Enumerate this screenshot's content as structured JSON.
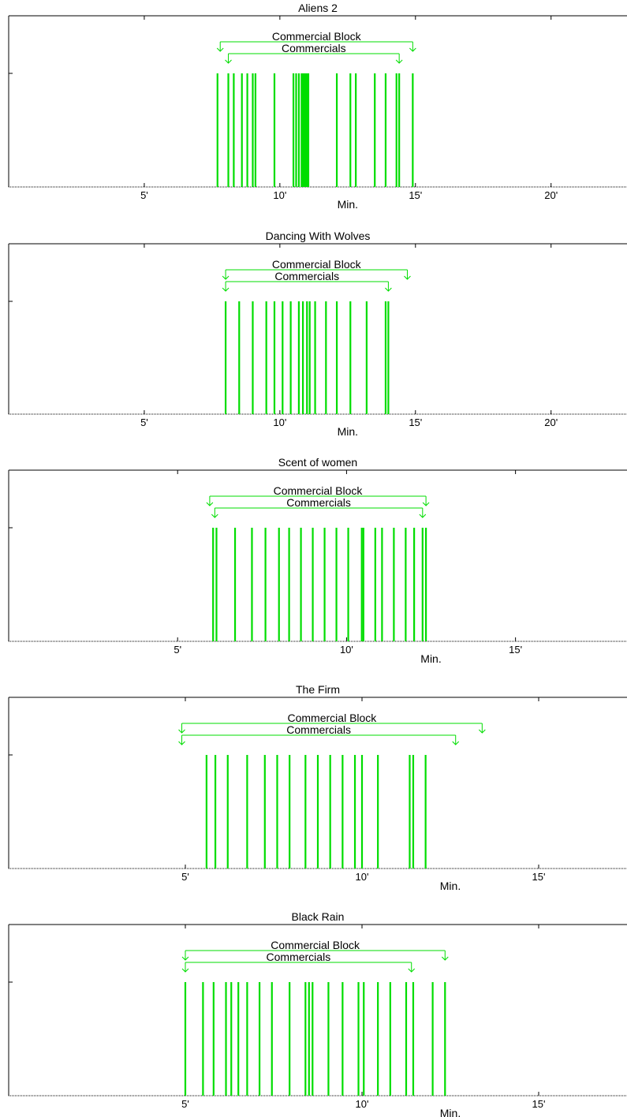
{
  "colors": {
    "mark": "#00dd00",
    "axis": "#000000",
    "background": "#ffffff"
  },
  "chart_data": [
    {
      "type": "bar",
      "title": "Aliens 2",
      "xlabel": "Min.",
      "xlim": [
        0,
        22.8
      ],
      "xticks": [
        5,
        10,
        15,
        20
      ],
      "xtick_labels": [
        "5'",
        "10'",
        "15'",
        "20'"
      ],
      "y_tick_count": 1,
      "commercial_block_label": "Commercial Block",
      "commercial_block": [
        7.8,
        14.9
      ],
      "commercials_label": "Commercials",
      "commercials": [
        8.1,
        14.4
      ],
      "events": [
        7.7,
        8.1,
        8.3,
        8.6,
        8.8,
        9.0,
        9.1,
        9.8,
        10.5,
        10.6,
        10.7,
        10.8,
        10.85,
        10.9,
        10.95,
        11.0,
        11.05,
        12.1,
        12.6,
        12.8,
        13.5,
        13.9,
        14.3,
        14.4,
        14.9
      ]
    },
    {
      "type": "bar",
      "title": "Dancing With Wolves",
      "xlabel": "Min.",
      "xlim": [
        0,
        22.8
      ],
      "xticks": [
        5,
        10,
        15,
        20
      ],
      "xtick_labels": [
        "5'",
        "10'",
        "15'",
        "20'"
      ],
      "y_tick_count": 1,
      "commercial_block_label": "Commercial Block",
      "commercial_block": [
        8.0,
        14.7
      ],
      "commercials_label": "Commercials",
      "commercials": [
        8.0,
        14.0
      ],
      "events": [
        8.0,
        8.5,
        9.0,
        9.5,
        9.8,
        10.1,
        10.4,
        10.7,
        10.85,
        11.0,
        11.1,
        11.3,
        11.7,
        12.1,
        12.6,
        13.2,
        13.9,
        14.0
      ]
    },
    {
      "type": "bar",
      "title": "Scent of women",
      "xlabel": "Min.",
      "xlim": [
        0,
        18.3
      ],
      "xticks": [
        5,
        10,
        15
      ],
      "xtick_labels": [
        "5'",
        "10'",
        "15'"
      ],
      "y_tick_count": 1,
      "commercial_block_label": "Commercial Block",
      "commercial_block": [
        5.95,
        12.35
      ],
      "commercials_label": "Commercials",
      "commercials": [
        6.1,
        12.25
      ],
      "events": [
        6.05,
        6.15,
        6.7,
        7.2,
        7.6,
        8.0,
        8.3,
        8.65,
        9.0,
        9.35,
        9.7,
        10.05,
        10.45,
        10.5,
        10.85,
        11.05,
        11.4,
        11.75,
        12.0,
        12.25,
        12.35
      ]
    },
    {
      "type": "bar",
      "title": "The Firm",
      "xlabel": "Min.",
      "xlim": [
        0,
        17.5
      ],
      "xticks": [
        5,
        10,
        15
      ],
      "xtick_labels": [
        "5'",
        "10'",
        "15'"
      ],
      "y_tick_count": 1,
      "commercial_block_label": "Commercial Block",
      "commercial_block": [
        4.9,
        13.4
      ],
      "commercials_label": "Commercials",
      "commercials": [
        4.9,
        12.65
      ],
      "events": [
        5.6,
        5.85,
        6.2,
        6.75,
        7.25,
        7.6,
        7.95,
        8.4,
        8.75,
        9.1,
        9.45,
        9.8,
        10.0,
        10.45,
        11.35,
        11.45,
        11.8
      ]
    },
    {
      "type": "bar",
      "title": "Black Rain",
      "xlabel": "Min.",
      "xlim": [
        0,
        17.5
      ],
      "xticks": [
        5,
        10,
        15
      ],
      "xtick_labels": [
        "5'",
        "10'",
        "15'"
      ],
      "y_tick_count": 1,
      "commercial_block_label": "Commercial Block",
      "commercial_block": [
        5.0,
        12.35
      ],
      "commercials_label": "Commercials",
      "commercials": [
        5.0,
        11.4
      ],
      "events": [
        5.0,
        5.5,
        5.8,
        6.15,
        6.3,
        6.5,
        6.75,
        7.1,
        7.45,
        7.95,
        8.4,
        8.5,
        8.6,
        9.05,
        9.45,
        9.9,
        10.05,
        10.45,
        10.8,
        11.25,
        11.45,
        12.0,
        12.35
      ]
    }
  ]
}
